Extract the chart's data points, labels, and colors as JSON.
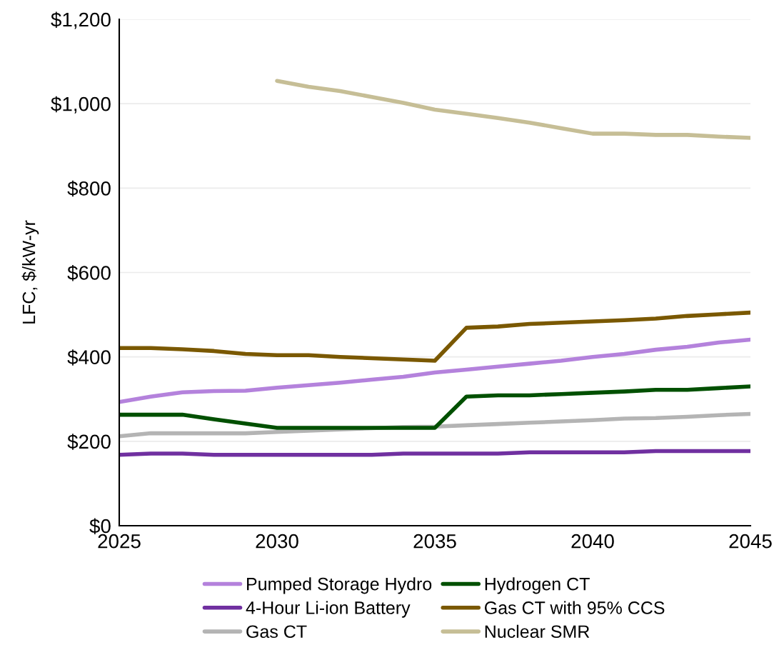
{
  "chart_data": {
    "type": "line",
    "ylabel": "LFC, $/kW-yr",
    "x": [
      2025,
      2026,
      2027,
      2028,
      2029,
      2030,
      2031,
      2032,
      2033,
      2034,
      2035,
      2036,
      2037,
      2038,
      2039,
      2040,
      2041,
      2042,
      2043,
      2044,
      2045
    ],
    "xlim": [
      2025,
      2045
    ],
    "xticks": [
      2025,
      2030,
      2035,
      2040,
      2045
    ],
    "ylim": [
      0,
      1200
    ],
    "yticks": [
      {
        "value": 0,
        "label": "$0"
      },
      {
        "value": 200,
        "label": "$200"
      },
      {
        "value": 400,
        "label": "$400"
      },
      {
        "value": 600,
        "label": "$600"
      },
      {
        "value": 800,
        "label": "$800"
      },
      {
        "value": 1000,
        "label": "$1,000"
      },
      {
        "value": 1200,
        "label": "$1,200"
      }
    ],
    "grid": "y",
    "legend": "bottom",
    "marker": "none",
    "line_style": "solid",
    "series": [
      {
        "name": "Pumped Storage Hydro",
        "color": "#b482dc",
        "values": [
          293,
          306,
          316,
          319,
          320,
          327,
          333,
          339,
          346,
          353,
          363,
          370,
          377,
          384,
          391,
          400,
          407,
          417,
          424,
          434,
          441
        ]
      },
      {
        "name": "4-Hour Li-ion Battery",
        "color": "#7030a0",
        "values": [
          168,
          171,
          171,
          168,
          168,
          168,
          168,
          168,
          168,
          171,
          171,
          171,
          171,
          174,
          174,
          174,
          174,
          177,
          177,
          177,
          177
        ]
      },
      {
        "name": "Gas CT",
        "color": "#b4b4b4",
        "values": [
          212,
          219,
          219,
          219,
          219,
          222,
          225,
          228,
          231,
          234,
          235,
          238,
          241,
          244,
          247,
          250,
          254,
          255,
          258,
          262,
          265
        ]
      },
      {
        "name": "Hydrogen CT",
        "color": "#005000",
        "values": [
          263,
          263,
          263,
          252,
          242,
          232,
          232,
          232,
          232,
          232,
          232,
          306,
          309,
          309,
          312,
          315,
          318,
          322,
          322,
          326,
          330
        ]
      },
      {
        "name": "Gas CT with 95% CCS",
        "color": "#7a5800",
        "values": [
          421,
          421,
          418,
          414,
          407,
          404,
          404,
          400,
          397,
          394,
          391,
          469,
          472,
          478,
          481,
          484,
          487,
          491,
          497,
          501,
          505
        ]
      },
      {
        "name": "Nuclear SMR",
        "color": "#c6be96",
        "values": [
          null,
          null,
          null,
          null,
          null,
          1054,
          1040,
          1030,
          1016,
          1002,
          986,
          976,
          966,
          955,
          942,
          929,
          929,
          926,
          926,
          922,
          919
        ]
      }
    ]
  }
}
